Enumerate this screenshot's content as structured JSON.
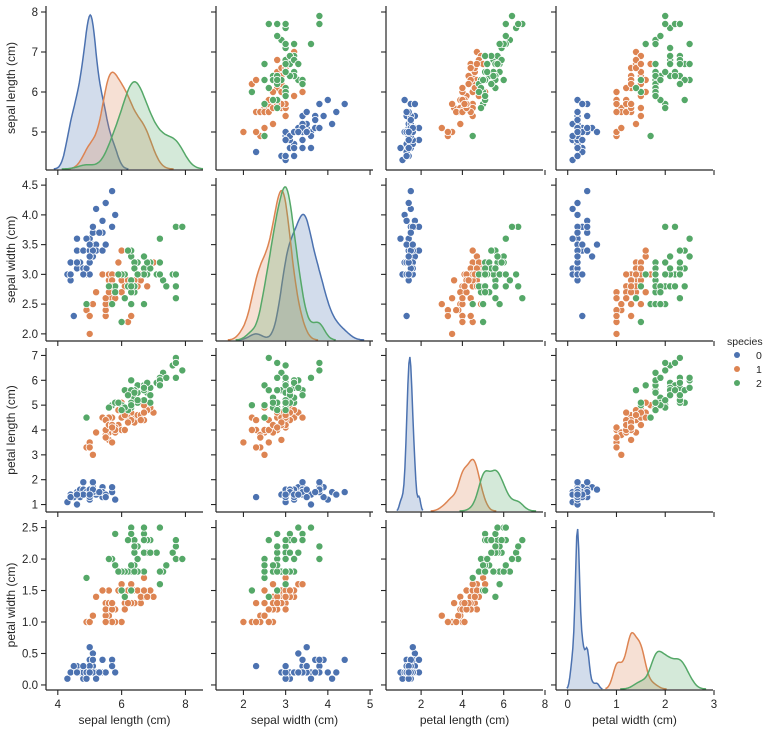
{
  "chart_data": {
    "type": "scatter",
    "title": "",
    "kind": "pairplot",
    "hue": "species",
    "legend": {
      "title": "species",
      "placement": "right-center",
      "entries": [
        {
          "label": "0",
          "color": "#4c72b0"
        },
        {
          "label": "1",
          "color": "#dd8452"
        },
        {
          "label": "2",
          "color": "#55a868"
        }
      ]
    },
    "diagonal": "kde",
    "variables": [
      {
        "name": "sepal length (cm)",
        "range": [
          3.63,
          8.55
        ],
        "ticks": [
          4,
          6,
          8
        ],
        "ylim": [
          4.05,
          8.15
        ],
        "yticks": [
          5,
          6,
          7,
          8
        ]
      },
      {
        "name": "sepal width (cm)",
        "range": [
          1.35,
          5.07
        ],
        "ticks": [
          2,
          3,
          4,
          5
        ],
        "ylim": [
          1.88,
          4.62
        ],
        "yticks": [
          "2.0",
          "2.5",
          "3.0",
          "3.5",
          "4.0",
          "4.5"
        ]
      },
      {
        "name": "petal length (cm)",
        "range": [
          0.3,
          8.0
        ],
        "ticks": [
          2,
          4,
          6,
          8
        ],
        "ylim": [
          0.7,
          7.3
        ],
        "yticks": [
          1,
          2,
          3,
          4,
          5,
          6,
          7
        ]
      },
      {
        "name": "petal width (cm)",
        "range": [
          -0.24,
          3.0
        ],
        "ticks": [
          0,
          1,
          2,
          3
        ],
        "ylim": [
          -0.08,
          2.62
        ],
        "yticks": [
          "0.0",
          "0.5",
          "1.0",
          "1.5",
          "2.0",
          "2.5"
        ]
      }
    ],
    "series": [
      {
        "name": "0",
        "color": "#4c72b0",
        "points": [
          [
            5.1,
            3.5,
            1.4,
            0.2
          ],
          [
            4.9,
            3.0,
            1.4,
            0.2
          ],
          [
            4.7,
            3.2,
            1.3,
            0.2
          ],
          [
            4.6,
            3.1,
            1.5,
            0.2
          ],
          [
            5.0,
            3.6,
            1.4,
            0.2
          ],
          [
            5.4,
            3.9,
            1.7,
            0.4
          ],
          [
            4.6,
            3.4,
            1.4,
            0.3
          ],
          [
            5.0,
            3.4,
            1.5,
            0.2
          ],
          [
            4.4,
            2.9,
            1.4,
            0.2
          ],
          [
            4.9,
            3.1,
            1.5,
            0.1
          ],
          [
            5.4,
            3.7,
            1.5,
            0.2
          ],
          [
            4.8,
            3.4,
            1.6,
            0.2
          ],
          [
            4.8,
            3.0,
            1.4,
            0.1
          ],
          [
            4.3,
            3.0,
            1.1,
            0.1
          ],
          [
            5.8,
            4.0,
            1.2,
            0.2
          ],
          [
            5.7,
            4.4,
            1.5,
            0.4
          ],
          [
            5.4,
            3.9,
            1.3,
            0.4
          ],
          [
            5.1,
            3.5,
            1.4,
            0.3
          ],
          [
            5.7,
            3.8,
            1.7,
            0.3
          ],
          [
            5.1,
            3.8,
            1.5,
            0.3
          ],
          [
            5.4,
            3.4,
            1.7,
            0.2
          ],
          [
            5.1,
            3.7,
            1.5,
            0.4
          ],
          [
            4.6,
            3.6,
            1.0,
            0.2
          ],
          [
            5.1,
            3.3,
            1.7,
            0.5
          ],
          [
            4.8,
            3.4,
            1.9,
            0.2
          ],
          [
            5.0,
            3.0,
            1.6,
            0.2
          ],
          [
            5.0,
            3.4,
            1.6,
            0.4
          ],
          [
            5.2,
            3.5,
            1.5,
            0.2
          ],
          [
            5.2,
            3.4,
            1.4,
            0.2
          ],
          [
            4.7,
            3.2,
            1.6,
            0.2
          ],
          [
            4.8,
            3.1,
            1.6,
            0.2
          ],
          [
            5.4,
            3.4,
            1.5,
            0.4
          ],
          [
            5.2,
            4.1,
            1.5,
            0.1
          ],
          [
            5.5,
            4.2,
            1.4,
            0.2
          ],
          [
            4.9,
            3.1,
            1.5,
            0.2
          ],
          [
            5.0,
            3.2,
            1.2,
            0.2
          ],
          [
            5.5,
            3.5,
            1.3,
            0.2
          ],
          [
            4.9,
            3.6,
            1.4,
            0.1
          ],
          [
            4.4,
            3.0,
            1.3,
            0.2
          ],
          [
            5.1,
            3.4,
            1.5,
            0.2
          ],
          [
            5.0,
            3.5,
            1.3,
            0.3
          ],
          [
            4.5,
            2.3,
            1.3,
            0.3
          ],
          [
            4.4,
            3.2,
            1.3,
            0.2
          ],
          [
            5.0,
            3.5,
            1.6,
            0.6
          ],
          [
            5.1,
            3.8,
            1.9,
            0.4
          ],
          [
            4.8,
            3.0,
            1.4,
            0.3
          ],
          [
            5.1,
            3.8,
            1.6,
            0.2
          ],
          [
            4.6,
            3.2,
            1.4,
            0.2
          ],
          [
            5.3,
            3.7,
            1.5,
            0.2
          ],
          [
            5.0,
            3.3,
            1.4,
            0.2
          ]
        ]
      },
      {
        "name": "1",
        "color": "#dd8452",
        "points": [
          [
            7.0,
            3.2,
            4.7,
            1.4
          ],
          [
            6.4,
            3.2,
            4.5,
            1.5
          ],
          [
            6.9,
            3.1,
            4.9,
            1.5
          ],
          [
            5.5,
            2.3,
            4.0,
            1.3
          ],
          [
            6.5,
            2.8,
            4.6,
            1.5
          ],
          [
            5.7,
            2.8,
            4.5,
            1.3
          ],
          [
            6.3,
            3.3,
            4.7,
            1.6
          ],
          [
            4.9,
            2.4,
            3.3,
            1.0
          ],
          [
            6.6,
            2.9,
            4.6,
            1.3
          ],
          [
            5.2,
            2.7,
            3.9,
            1.4
          ],
          [
            5.0,
            2.0,
            3.5,
            1.0
          ],
          [
            5.9,
            3.0,
            4.2,
            1.5
          ],
          [
            6.0,
            2.2,
            4.0,
            1.0
          ],
          [
            6.1,
            2.9,
            4.7,
            1.4
          ],
          [
            5.6,
            2.9,
            3.6,
            1.3
          ],
          [
            6.7,
            3.1,
            4.4,
            1.4
          ],
          [
            5.6,
            3.0,
            4.5,
            1.5
          ],
          [
            5.8,
            2.7,
            4.1,
            1.0
          ],
          [
            6.2,
            2.2,
            4.5,
            1.5
          ],
          [
            5.6,
            2.5,
            3.9,
            1.1
          ],
          [
            5.9,
            3.2,
            4.8,
            1.8
          ],
          [
            6.1,
            2.8,
            4.0,
            1.3
          ],
          [
            6.3,
            2.5,
            4.9,
            1.5
          ],
          [
            6.1,
            2.8,
            4.7,
            1.2
          ],
          [
            6.4,
            2.9,
            4.3,
            1.3
          ],
          [
            6.6,
            3.0,
            4.4,
            1.4
          ],
          [
            6.8,
            2.8,
            4.8,
            1.4
          ],
          [
            6.7,
            3.0,
            5.0,
            1.7
          ],
          [
            6.0,
            2.9,
            4.5,
            1.5
          ],
          [
            5.7,
            2.6,
            3.5,
            1.0
          ],
          [
            5.5,
            2.4,
            3.8,
            1.1
          ],
          [
            5.5,
            2.4,
            3.7,
            1.0
          ],
          [
            5.8,
            2.7,
            3.9,
            1.2
          ],
          [
            6.0,
            2.7,
            5.1,
            1.6
          ],
          [
            5.4,
            3.0,
            4.5,
            1.5
          ],
          [
            6.0,
            3.4,
            4.5,
            1.6
          ],
          [
            6.7,
            3.1,
            4.7,
            1.5
          ],
          [
            6.3,
            2.3,
            4.4,
            1.3
          ],
          [
            5.6,
            3.0,
            4.1,
            1.3
          ],
          [
            5.5,
            2.5,
            4.0,
            1.3
          ],
          [
            5.5,
            2.6,
            4.4,
            1.2
          ],
          [
            6.1,
            3.0,
            4.6,
            1.4
          ],
          [
            5.8,
            2.6,
            4.0,
            1.2
          ],
          [
            5.0,
            2.3,
            3.3,
            1.0
          ],
          [
            5.6,
            2.7,
            4.2,
            1.3
          ],
          [
            5.7,
            3.0,
            4.2,
            1.2
          ],
          [
            5.7,
            2.9,
            4.2,
            1.3
          ],
          [
            6.2,
            2.9,
            4.3,
            1.3
          ],
          [
            5.1,
            2.5,
            3.0,
            1.1
          ],
          [
            5.7,
            2.8,
            4.1,
            1.3
          ]
        ]
      },
      {
        "name": "2",
        "color": "#55a868",
        "points": [
          [
            6.3,
            3.3,
            6.0,
            2.5
          ],
          [
            5.8,
            2.7,
            5.1,
            1.9
          ],
          [
            7.1,
            3.0,
            5.9,
            2.1
          ],
          [
            6.3,
            2.9,
            5.6,
            1.8
          ],
          [
            6.5,
            3.0,
            5.8,
            2.2
          ],
          [
            7.6,
            3.0,
            6.6,
            2.1
          ],
          [
            4.9,
            2.5,
            4.5,
            1.7
          ],
          [
            7.3,
            2.9,
            6.3,
            1.8
          ],
          [
            6.7,
            2.5,
            5.8,
            1.8
          ],
          [
            7.2,
            3.6,
            6.1,
            2.5
          ],
          [
            6.5,
            3.2,
            5.1,
            2.0
          ],
          [
            6.4,
            2.7,
            5.3,
            1.9
          ],
          [
            6.8,
            3.0,
            5.5,
            2.1
          ],
          [
            5.7,
            2.5,
            5.0,
            2.0
          ],
          [
            5.8,
            2.8,
            5.1,
            2.4
          ],
          [
            6.4,
            3.2,
            5.3,
            2.3
          ],
          [
            6.5,
            3.0,
            5.5,
            1.8
          ],
          [
            7.7,
            3.8,
            6.7,
            2.2
          ],
          [
            7.7,
            2.6,
            6.9,
            2.3
          ],
          [
            6.0,
            2.2,
            5.0,
            1.5
          ],
          [
            6.9,
            3.2,
            5.7,
            2.3
          ],
          [
            5.6,
            2.8,
            4.9,
            2.0
          ],
          [
            7.7,
            2.8,
            6.7,
            2.0
          ],
          [
            6.3,
            2.7,
            4.9,
            1.8
          ],
          [
            6.7,
            3.3,
            5.7,
            2.1
          ],
          [
            7.2,
            3.2,
            6.0,
            1.8
          ],
          [
            6.2,
            2.8,
            4.8,
            1.8
          ],
          [
            6.1,
            3.0,
            4.9,
            1.8
          ],
          [
            6.4,
            2.8,
            5.6,
            2.1
          ],
          [
            7.2,
            3.0,
            5.8,
            1.6
          ],
          [
            7.4,
            2.8,
            6.1,
            1.9
          ],
          [
            7.9,
            3.8,
            6.4,
            2.0
          ],
          [
            6.4,
            2.8,
            5.6,
            2.2
          ],
          [
            6.3,
            2.8,
            5.1,
            1.5
          ],
          [
            6.1,
            2.6,
            5.6,
            1.4
          ],
          [
            7.7,
            3.0,
            6.1,
            2.3
          ],
          [
            6.3,
            3.4,
            5.6,
            2.4
          ],
          [
            6.4,
            3.1,
            5.5,
            1.8
          ],
          [
            6.0,
            3.0,
            4.8,
            1.8
          ],
          [
            6.9,
            3.1,
            5.4,
            2.1
          ],
          [
            6.7,
            3.1,
            5.6,
            2.4
          ],
          [
            6.9,
            3.1,
            5.1,
            2.3
          ],
          [
            5.8,
            2.7,
            5.1,
            1.9
          ],
          [
            6.8,
            3.2,
            5.9,
            2.3
          ],
          [
            6.7,
            3.3,
            5.7,
            2.5
          ],
          [
            6.7,
            3.0,
            5.2,
            2.3
          ],
          [
            6.3,
            2.5,
            5.0,
            1.9
          ],
          [
            6.5,
            3.0,
            5.2,
            2.0
          ],
          [
            6.2,
            3.4,
            5.4,
            2.3
          ],
          [
            5.9,
            3.0,
            5.1,
            1.8
          ]
        ]
      }
    ]
  }
}
